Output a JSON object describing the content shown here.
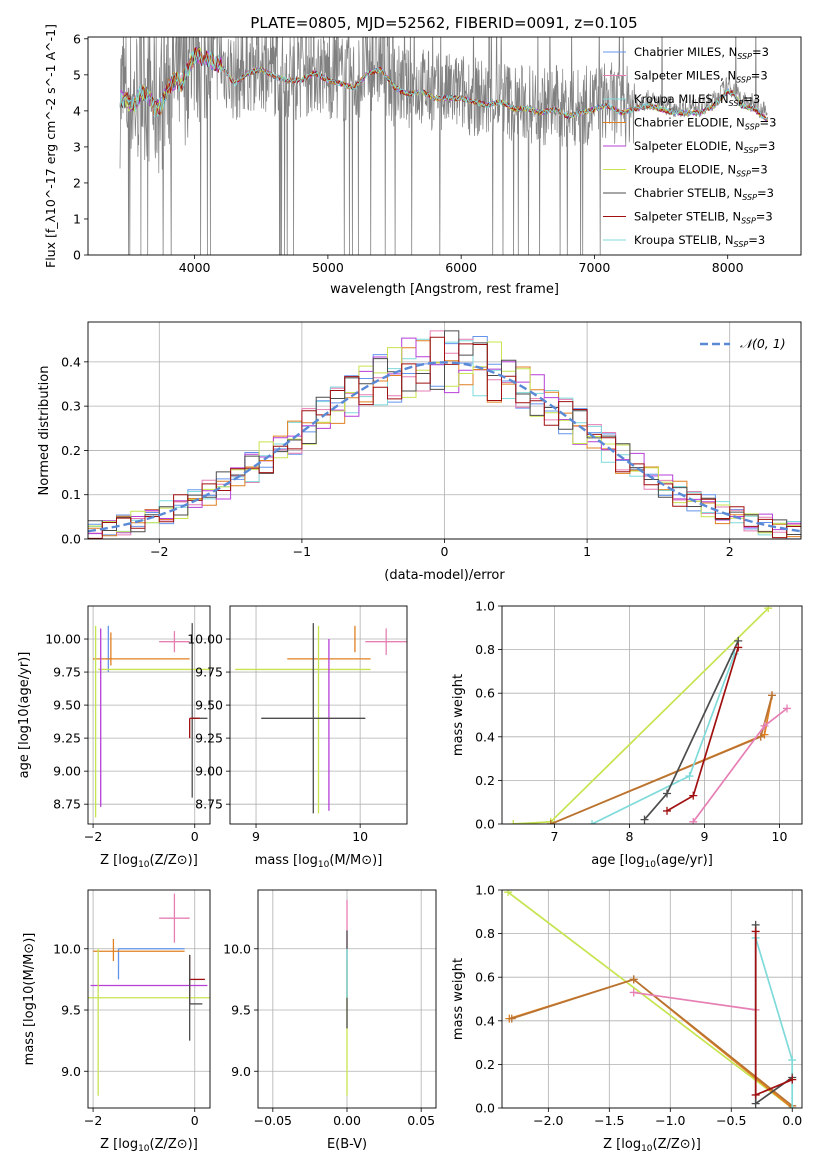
{
  "figure": {
    "title": "PLATE=0805, MJD=52562, FIBERID=0091, z=0.105"
  },
  "chart_data": [
    {
      "id": "spectrum",
      "type": "line",
      "xlabel": "wavelength [Angstrom, rest frame]",
      "ylabel": "Flux [f_λ10^-17 erg cm^-2 s^-1 A^-1]",
      "xlim": [
        3200,
        8550
      ],
      "ylim": [
        0,
        6.05
      ],
      "xticks": [
        4000,
        5000,
        6000,
        7000,
        8000
      ],
      "yticks": [
        0,
        1,
        2,
        3,
        4,
        5,
        6
      ],
      "grid": false,
      "legend_position": "right",
      "data_series": {
        "name": "data",
        "color": "#808080",
        "x": [
          3440,
          3500,
          3550,
          3600,
          3650,
          3700,
          3750,
          3800,
          3850,
          3900,
          3950,
          4000,
          4100,
          4200,
          4300,
          4400,
          4500,
          4600,
          4700,
          4800,
          4900,
          5000,
          5100,
          5200,
          5300,
          5400,
          5500,
          5600,
          5700,
          5800,
          5900,
          6000,
          6100,
          6200,
          6300,
          6400,
          6500,
          6600,
          6700,
          6800,
          6900,
          7000,
          7100,
          7200,
          7300,
          7400,
          7500,
          7600,
          7700,
          7800,
          7900,
          8000,
          8050,
          8100,
          8200,
          8300
        ],
        "y": [
          4.5,
          4.4,
          4.3,
          4.7,
          4.6,
          4.2,
          4.3,
          4.8,
          5.0,
          4.9,
          5.3,
          5.7,
          5.6,
          5.4,
          4.9,
          5.2,
          5.3,
          5.1,
          5.0,
          5.0,
          5.2,
          5.0,
          4.9,
          4.8,
          5.2,
          5.3,
          4.8,
          4.6,
          4.7,
          4.5,
          4.5,
          4.5,
          4.4,
          4.3,
          4.4,
          4.2,
          4.2,
          4.1,
          4.2,
          4.0,
          4.1,
          4.2,
          4.3,
          4.1,
          4.2,
          4.3,
          4.2,
          4.1,
          4.1,
          4.1,
          4.3,
          4.7,
          4.6,
          4.3,
          4.2,
          3.9
        ]
      },
      "model_color_order": [
        "#6495ED",
        "#E67FB4",
        "#7FDADA",
        "#4C4C4C",
        "#B73FD9",
        "#C6E44F",
        "#B87333",
        "#A01010",
        "#7FDADA"
      ],
      "legend": [
        {
          "name": "Chabrier MILES, N_SSP=3",
          "label_main": "Chabrier MILES, N",
          "label_sub": "SSP",
          "label_tail": "=3",
          "color": "#6495ED"
        },
        {
          "name": "Salpeter MILES, N_SSP=3",
          "label_main": "Salpeter MILES, N",
          "label_sub": "SSP",
          "label_tail": "=3",
          "color": "#E67FB4"
        },
        {
          "name": "Kroupa MILES, N_SSP=3",
          "label_main": "Kroupa MILES, N",
          "label_sub": "SSP",
          "label_tail": "=3",
          "color": "#7FDADA"
        },
        {
          "name": "Chabrier ELODIE, N_SSP=3",
          "label_main": "Chabrier ELODIE, N",
          "label_sub": "SSP",
          "label_tail": "=3",
          "color": "#E08020"
        },
        {
          "name": "Salpeter ELODIE, N_SSP=3",
          "label_main": "Salpeter ELODIE, N",
          "label_sub": "SSP",
          "label_tail": "=3",
          "color": "#B73FD9"
        },
        {
          "name": "Kroupa ELODIE, N_SSP=3",
          "label_main": "Kroupa ELODIE, N",
          "label_sub": "SSP",
          "label_tail": "=3",
          "color": "#C6E44F"
        },
        {
          "name": "Chabrier STELIB, N_SSP=3",
          "label_main": "Chabrier STELIB, N",
          "label_sub": "SSP",
          "label_tail": "=3",
          "color": "#4C4C4C"
        },
        {
          "name": "Salpeter STELIB, N_SSP=3",
          "label_main": "Salpeter STELIB, N",
          "label_sub": "SSP",
          "label_tail": "=3",
          "color": "#A01010"
        },
        {
          "name": "Kroupa STELIB, N_SSP=3",
          "label_main": "Kroupa STELIB, N",
          "label_sub": "SSP",
          "label_tail": "=3",
          "color": "#7FDADA"
        }
      ]
    },
    {
      "id": "residuals",
      "type": "line",
      "xlabel": "(data-model)/error",
      "ylabel": "Normed distribution",
      "xlim": [
        -2.5,
        2.5
      ],
      "ylim": [
        0,
        0.49
      ],
      "xticks": [
        -2,
        -1,
        0,
        1,
        2
      ],
      "yticks": [
        0.0,
        0.1,
        0.2,
        0.3,
        0.4
      ],
      "grid": true,
      "legend_position": "top-right",
      "legend": [
        {
          "name": "N(0,1)",
          "label": "𝒩(0, 1)",
          "color": "#5A8AD6"
        }
      ],
      "bin_width": 0.1,
      "hist_colors": [
        "#6495ED",
        "#E67FB4",
        "#7FDADA",
        "#E08020",
        "#B73FD9",
        "#C6E44F",
        "#4C4C4C",
        "#A01010"
      ],
      "hist_jitter": [
        0.012,
        -0.018,
        0.02,
        -0.008,
        0.015,
        -0.02,
        0.01,
        0.018,
        -0.012,
        0.006,
        -0.016,
        0.022,
        -0.006,
        0.014,
        -0.02,
        0.008
      ]
    },
    {
      "id": "age-vs-Z",
      "type": "scatter",
      "xlabel": "Z [log10(Z/Z⊙)]",
      "xlabel_main": "Z [log",
      "xlabel_sub": "10",
      "xlabel_tail": "(Z/Z⊙)]",
      "ylabel": "age  [log10(age/yr)]",
      "xlim": [
        -2.1,
        0.3
      ],
      "ylim": [
        8.6,
        10.25
      ],
      "xticks": [
        -2,
        0
      ],
      "yticks": [
        8.75,
        9.0,
        9.25,
        9.5,
        9.75,
        10.0
      ],
      "grid": true,
      "points": [
        {
          "color": "#6495ED",
          "x": -1.7,
          "xerr": [
            0.05,
            0.05
          ],
          "y": 9.85,
          "yerr": [
            0.1,
            0.25
          ]
        },
        {
          "color": "#E67FB4",
          "x": -0.4,
          "xerr": [
            0.3,
            0.3
          ],
          "y": 9.98,
          "yerr": [
            0.08,
            0.08
          ]
        },
        {
          "color": "#E08020",
          "x": -0.1,
          "xerr": [
            1.9,
            0.0
          ],
          "y": 9.85,
          "yerr": [
            0.0,
            0.0
          ]
        },
        {
          "color": "#E08020",
          "x": -1.65,
          "xerr": [
            0.0,
            0.0
          ],
          "y": 9.9,
          "yerr": [
            0.1,
            0.15
          ]
        },
        {
          "color": "#C6E44F",
          "x": -1.9,
          "xerr": [
            0.0,
            2.2
          ],
          "y": 9.77,
          "yerr": [
            0.0,
            0.0
          ]
        },
        {
          "color": "#C6E44F",
          "x": -1.95,
          "xerr": [
            0.0,
            0.0
          ],
          "y": 9.4,
          "yerr": [
            0.75,
            0.7
          ]
        },
        {
          "color": "#B73FD9",
          "x": -1.85,
          "xerr": [
            0.0,
            0.0
          ],
          "y": 9.38,
          "yerr": [
            0.65,
            0.7
          ]
        },
        {
          "color": "#4C4C4C",
          "x": -0.05,
          "xerr": [
            0.0,
            0.3
          ],
          "y": 9.4,
          "yerr": [
            0.6,
            0.72
          ]
        },
        {
          "color": "#A01010",
          "x": -0.1,
          "xerr": [
            0.0,
            0.2
          ],
          "y": 9.4,
          "yerr": [
            0.15,
            0.0
          ]
        }
      ]
    },
    {
      "id": "age-vs-mass",
      "type": "scatter",
      "xlabel": "mass [log10(M/M⊙)]",
      "xlabel_main": "mass [log",
      "xlabel_sub": "10",
      "xlabel_tail": "(M/M⊙)]",
      "ylabel": "",
      "xlim": [
        8.75,
        10.45
      ],
      "ylim": [
        8.6,
        10.25
      ],
      "xticks": [
        9,
        10
      ],
      "yticks": [
        8.75,
        9.0,
        9.25,
        9.5,
        9.75,
        10.0
      ],
      "grid": true,
      "points": [
        {
          "color": "#E67FB4",
          "x": 10.25,
          "xerr": [
            0.2,
            0.2
          ],
          "y": 9.98,
          "yerr": [
            0.1,
            0.1
          ]
        },
        {
          "color": "#E08020",
          "x": 9.95,
          "xerr": [
            0.0,
            0.0
          ],
          "y": 9.9,
          "yerr": [
            0.0,
            0.2
          ]
        },
        {
          "color": "#E08020",
          "x": 9.9,
          "xerr": [
            0.6,
            0.2
          ],
          "y": 9.85,
          "yerr": [
            0.0,
            0.0
          ]
        },
        {
          "color": "#C6E44F",
          "x": 9.6,
          "xerr": [
            0.8,
            0.5
          ],
          "y": 9.77,
          "yerr": [
            0.0,
            0.0
          ]
        },
        {
          "color": "#C6E44F",
          "x": 9.6,
          "xerr": [
            0.0,
            0.0
          ],
          "y": 9.4,
          "yerr": [
            0.72,
            0.7
          ]
        },
        {
          "color": "#B73FD9",
          "x": 9.7,
          "xerr": [
            0.0,
            0.0
          ],
          "y": 9.3,
          "yerr": [
            0.6,
            0.7
          ]
        },
        {
          "color": "#4C4C4C",
          "x": 9.55,
          "xerr": [
            0.5,
            0.5
          ],
          "y": 9.4,
          "yerr": [
            0.72,
            0.72
          ]
        }
      ]
    },
    {
      "id": "mass-weight-vs-age",
      "type": "line",
      "xlabel": "age  [log10(age/yr)]",
      "xlabel_main": "age  [log",
      "xlabel_sub": "10",
      "xlabel_tail": "(age/yr)]",
      "ylabel": "mass weight",
      "xlim": [
        6.3,
        10.3
      ],
      "ylim": [
        0,
        1.0
      ],
      "xticks": [
        7,
        8,
        9,
        10
      ],
      "yticks": [
        0.0,
        0.2,
        0.4,
        0.6,
        0.8,
        1.0
      ],
      "grid": true,
      "series": [
        {
          "color": "#C6E44F",
          "x": [
            6.45,
            6.95,
            9.85
          ],
          "y": [
            0.0,
            0.01,
            0.99
          ]
        },
        {
          "color": "#E08020",
          "x": [
            6.95,
            9.8,
            9.9
          ],
          "y": [
            0.0,
            0.41,
            0.59
          ]
        },
        {
          "color": "#B87333",
          "x": [
            6.95,
            9.75,
            9.9
          ],
          "y": [
            0.0,
            0.4,
            0.59
          ]
        },
        {
          "color": "#7FDADA",
          "x": [
            7.5,
            8.8,
            9.4
          ],
          "y": [
            0.0,
            0.22,
            0.78
          ]
        },
        {
          "color": "#4C4C4C",
          "x": [
            8.2,
            8.5,
            9.45
          ],
          "y": [
            0.02,
            0.14,
            0.84
          ]
        },
        {
          "color": "#A01010",
          "x": [
            8.5,
            8.85,
            9.45
          ],
          "y": [
            0.06,
            0.13,
            0.81
          ]
        },
        {
          "color": "#E67FB4",
          "x": [
            8.85,
            9.8,
            10.1
          ],
          "y": [
            0.01,
            0.45,
            0.53
          ]
        }
      ]
    },
    {
      "id": "mass-vs-Z",
      "type": "scatter",
      "xlabel": "Z [log10(Z/Z⊙)]",
      "xlabel_main": "Z [log",
      "xlabel_sub": "10",
      "xlabel_tail": "(Z/Z⊙)]",
      "ylabel": "mass [log10(M/M⊙)]",
      "xlim": [
        -2.1,
        0.3
      ],
      "ylim": [
        8.7,
        10.48
      ],
      "xticks": [
        -2,
        0
      ],
      "yticks": [
        9.0,
        9.5,
        10.0
      ],
      "grid": true,
      "points": [
        {
          "color": "#E67FB4",
          "x": -0.4,
          "xerr": [
            0.3,
            0.3
          ],
          "y": 10.25,
          "yerr": [
            0.2,
            0.2
          ]
        },
        {
          "color": "#6495ED",
          "x": -1.5,
          "xerr": [
            0.0,
            1.3
          ],
          "y": 10.0,
          "yerr": [
            0.0,
            0.0
          ]
        },
        {
          "color": "#6495ED",
          "x": -1.5,
          "xerr": [
            0.0,
            0.0
          ],
          "y": 9.9,
          "yerr": [
            0.15,
            0.1
          ]
        },
        {
          "color": "#E08020",
          "x": -1.6,
          "xerr": [
            0.4,
            1.4
          ],
          "y": 9.98,
          "yerr": [
            0.08,
            0.1
          ]
        },
        {
          "color": "#A01010",
          "x": -0.1,
          "xerr": [
            0.0,
            0.3
          ],
          "y": 9.75,
          "yerr": [
            0.0,
            0.0
          ]
        },
        {
          "color": "#A01010",
          "x": -0.1,
          "xerr": [
            0.0,
            0.0
          ],
          "y": 9.75,
          "yerr": [
            0.2,
            0.2
          ]
        },
        {
          "color": "#B73FD9",
          "x": -1.85,
          "xerr": [
            0.2,
            2.1
          ],
          "y": 9.7,
          "yerr": [
            0.0,
            0.0
          ]
        },
        {
          "color": "#C6E44F",
          "x": -1.9,
          "xerr": [
            0.2,
            2.2
          ],
          "y": 9.6,
          "yerr": [
            0.0,
            0.0
          ]
        },
        {
          "color": "#C6E44F",
          "x": -1.9,
          "xerr": [
            0.0,
            0.0
          ],
          "y": 9.6,
          "yerr": [
            0.8,
            0.4
          ]
        },
        {
          "color": "#4C4C4C",
          "x": -0.1,
          "xerr": [
            0.0,
            0.25
          ],
          "y": 9.55,
          "yerr": [
            0.3,
            0.4
          ]
        }
      ]
    },
    {
      "id": "mass-vs-ebv",
      "type": "scatter",
      "xlabel": "E(B-V)",
      "ylabel": "",
      "xlim": [
        -0.06,
        0.06
      ],
      "ylim": [
        8.7,
        10.48
      ],
      "xticks": [
        -0.05,
        0.0,
        0.05
      ],
      "xtick_labels": [
        "−0.05",
        "0.00",
        "0.05"
      ],
      "yticks": [
        9.0,
        9.5,
        10.0
      ],
      "grid": true,
      "points": [
        {
          "color": "#E67FB4",
          "x": 0.0,
          "xerr": [
            0.0,
            0.0
          ],
          "y": 10.2,
          "yerr": [
            0.2,
            0.2
          ]
        },
        {
          "color": "#C6E44F",
          "x": 0.0,
          "xerr": [
            0.0,
            0.0
          ],
          "y": 9.6,
          "yerr": [
            0.8,
            0.3
          ]
        },
        {
          "color": "#4C4C4C",
          "x": 0.0,
          "xerr": [
            0.0,
            0.0
          ],
          "y": 9.55,
          "yerr": [
            0.2,
            0.6
          ]
        },
        {
          "color": "#7FDADA",
          "x": 0.0,
          "xerr": [
            0.0,
            0.0
          ],
          "y": 9.8,
          "yerr": [
            0.2,
            0.2
          ]
        }
      ]
    },
    {
      "id": "mass-weight-vs-Z",
      "type": "line",
      "xlabel": "Z [log10(Z/Z⊙)]",
      "xlabel_main": "Z [log",
      "xlabel_sub": "10",
      "xlabel_tail": "(Z/Z⊙)]",
      "ylabel": "mass weight",
      "xlim": [
        -2.38,
        0.08
      ],
      "ylim": [
        0,
        1.0
      ],
      "xticks": [
        -2.0,
        -1.5,
        -1.0,
        -0.5,
        0.0
      ],
      "xtick_labels": [
        "−2.0",
        "−1.5",
        "−1.0",
        "−0.5",
        "0.0"
      ],
      "yticks": [
        0.0,
        0.2,
        0.4,
        0.6,
        0.8,
        1.0
      ],
      "grid": true,
      "series": [
        {
          "color": "#C6E44F",
          "x": [
            -2.33,
            0.0
          ],
          "y": [
            0.99,
            0.0
          ]
        },
        {
          "color": "#E08020",
          "x": [
            -2.32,
            -1.3,
            0.0
          ],
          "y": [
            0.41,
            0.59,
            0.0
          ]
        },
        {
          "color": "#B87333",
          "x": [
            -2.3,
            -1.3,
            0.0
          ],
          "y": [
            0.41,
            0.59,
            0.01
          ]
        },
        {
          "color": "#E67FB4",
          "x": [
            -1.3,
            -0.3
          ],
          "y": [
            0.53,
            0.45
          ]
        },
        {
          "color": "#7FDADA",
          "x": [
            -0.3,
            0.0,
            0.0
          ],
          "y": [
            0.78,
            0.22,
            0.0
          ]
        },
        {
          "color": "#4C4C4C",
          "x": [
            -0.3,
            -0.3,
            0.0
          ],
          "y": [
            0.84,
            0.02,
            0.14
          ]
        },
        {
          "color": "#A01010",
          "x": [
            -0.3,
            -0.3,
            0.0
          ],
          "y": [
            0.81,
            0.06,
            0.13
          ]
        }
      ]
    }
  ]
}
